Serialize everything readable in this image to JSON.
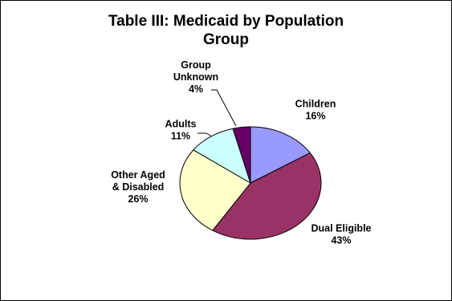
{
  "chart_data": {
    "type": "pie",
    "title_lines": [
      "Table III: Medicaid by Population",
      "Group"
    ],
    "slices": [
      {
        "label_lines": [
          "Children",
          "16%"
        ],
        "value": 16,
        "color": "#9999ff"
      },
      {
        "label_lines": [
          "Dual Eligible",
          "43%"
        ],
        "value": 43,
        "color": "#993366"
      },
      {
        "label_lines": [
          "Other Aged",
          "& Disabled",
          "26%"
        ],
        "value": 26,
        "color": "#ffffcc"
      },
      {
        "label_lines": [
          "Adults",
          "11%"
        ],
        "value": 11,
        "color": "#ccffff"
      },
      {
        "label_lines": [
          "Group",
          "Unknown",
          "4%"
        ],
        "value": 4,
        "color": "#660066"
      }
    ],
    "start": "12 o'clock",
    "direction": "clockwise"
  }
}
